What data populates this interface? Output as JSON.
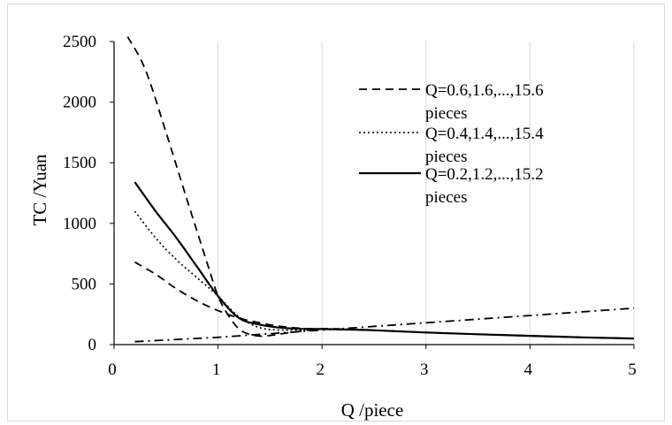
{
  "chart_data": {
    "type": "line",
    "title": "",
    "xlabel": "Q /piece",
    "ylabel": "TC /Yuan",
    "xlim": [
      0,
      5
    ],
    "ylim": [
      0,
      2500
    ],
    "x_ticks": [
      "0",
      "1",
      "2",
      "3",
      "4",
      "5"
    ],
    "y_ticks": [
      "0",
      "500",
      "1000",
      "1500",
      "2000",
      "2500"
    ],
    "grid": "vertical",
    "legend_position": "upper-right",
    "series": [
      {
        "name": "Q=0.6,1.6,...,15.6 pieces",
        "style": "dashed",
        "x": [
          0.13,
          0.3,
          0.5,
          0.7,
          0.9,
          1.0,
          1.1,
          1.2,
          1.3,
          1.4,
          1.5,
          1.7,
          2.0,
          2.2,
          2.5,
          3.0,
          3.5,
          4.0,
          4.5,
          5.0
        ],
        "y": [
          2540,
          2270,
          1750,
          1200,
          660,
          400,
          240,
          130,
          85,
          70,
          75,
          100,
          130,
          128,
          118,
          100,
          85,
          72,
          60,
          50
        ]
      },
      {
        "name": "Q=0.4,1.4,...,15.4 pieces",
        "style": "dotted",
        "x": [
          0.2,
          0.4,
          0.6,
          0.8,
          1.0,
          1.2,
          1.4,
          1.6,
          1.8,
          2.0,
          2.2,
          2.5,
          3.0,
          3.5,
          4.0,
          4.5,
          5.0
        ],
        "y": [
          1100,
          880,
          700,
          550,
          400,
          230,
          140,
          120,
          122,
          130,
          127,
          118,
          100,
          85,
          72,
          60,
          50
        ]
      },
      {
        "name": "Q=0.2,1.2,...,15.2 pieces",
        "style": "solid",
        "x": [
          0.2,
          0.4,
          0.6,
          0.8,
          1.0,
          1.2,
          1.4,
          1.6,
          1.8,
          2.0,
          2.2,
          2.5,
          3.0,
          3.5,
          4.0,
          4.5,
          5.0
        ],
        "y": [
          1340,
          1100,
          880,
          640,
          400,
          220,
          165,
          140,
          130,
          128,
          125,
          118,
          100,
          85,
          72,
          60,
          50
        ]
      },
      {
        "style": "dashed",
        "x": [
          0.2,
          0.4,
          0.6,
          0.8,
          1.0,
          1.2,
          1.4,
          1.6,
          1.8,
          2.0,
          2.2,
          2.5,
          3.0,
          3.5,
          4.0,
          4.5,
          5.0
        ],
        "y": [
          680,
          580,
          460,
          360,
          280,
          220,
          180,
          150,
          135,
          128,
          125,
          118,
          100,
          85,
          72,
          60,
          50
        ]
      },
      {
        "style": "dash-dot",
        "x": [
          0.2,
          1.0,
          2.0,
          3.0,
          4.0,
          5.0
        ],
        "y": [
          24,
          60,
          120,
          180,
          240,
          300
        ]
      }
    ],
    "legend": [
      {
        "style": "dashed",
        "lines": [
          "Q=0.6,1.6,...,15.6",
          "pieces"
        ]
      },
      {
        "style": "dotted",
        "lines": [
          "Q=0.4,1.4,...,15.4",
          "pieces"
        ]
      },
      {
        "style": "solid",
        "lines": [
          "Q=0.2,1.2,...,15.2",
          "pieces"
        ]
      }
    ]
  }
}
